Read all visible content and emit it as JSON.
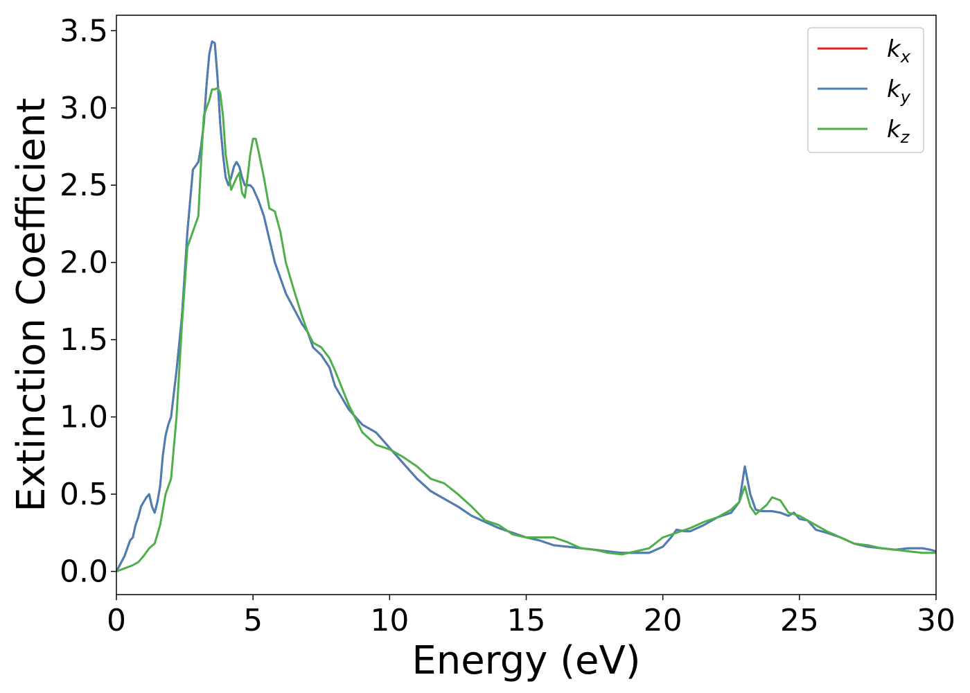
{
  "chart_data": {
    "type": "line",
    "title": "",
    "xlabel": "Energy (eV)",
    "ylabel": "Extinction Coefficient",
    "xlim": [
      0,
      30
    ],
    "ylim": [
      -0.15,
      3.6
    ],
    "xticks": [
      0,
      5,
      10,
      15,
      20,
      25,
      30
    ],
    "xtick_labels": [
      "0",
      "5",
      "10",
      "15",
      "20",
      "25",
      "30"
    ],
    "yticks": [
      0.0,
      0.5,
      1.0,
      1.5,
      2.0,
      2.5,
      3.0,
      3.5
    ],
    "ytick_labels": [
      "0.0",
      "0.5",
      "1.0",
      "1.5",
      "2.0",
      "2.5",
      "3.0",
      "3.5"
    ],
    "grid": false,
    "legend_position": "top-right",
    "series": [
      {
        "name": "k_x",
        "legend_base": "k",
        "legend_sub": "x",
        "color": "#e41a1c",
        "x": [
          0,
          0.3,
          0.5,
          0.6,
          0.7,
          0.8,
          0.9,
          1.0,
          1.1,
          1.2,
          1.3,
          1.4,
          1.5,
          1.6,
          1.7,
          1.8,
          1.9,
          2.0,
          2.2,
          2.4,
          2.6,
          2.8,
          3.0,
          3.1,
          3.2,
          3.3,
          3.4,
          3.5,
          3.6,
          3.7,
          3.8,
          3.9,
          4.0,
          4.1,
          4.2,
          4.3,
          4.4,
          4.5,
          4.6,
          4.7,
          4.8,
          4.9,
          5.0,
          5.2,
          5.4,
          5.6,
          5.8,
          6.0,
          6.2,
          6.5,
          6.8,
          7.0,
          7.2,
          7.5,
          7.8,
          8.0,
          8.5,
          9.0,
          9.5,
          10.0,
          10.5,
          11.0,
          11.5,
          12.0,
          12.5,
          13.0,
          13.5,
          14.0,
          14.5,
          15.0,
          15.5,
          16.0,
          16.5,
          17.0,
          17.5,
          18.0,
          18.5,
          19.0,
          19.5,
          20.0,
          20.3,
          20.5,
          20.8,
          21.0,
          21.5,
          22.0,
          22.5,
          22.8,
          23.0,
          23.2,
          23.4,
          23.6,
          24.0,
          24.3,
          24.6,
          24.8,
          25.0,
          25.3,
          25.6,
          26.0,
          26.5,
          27.0,
          27.5,
          28.0,
          28.5,
          29.0,
          29.5,
          29.8,
          30.0
        ],
        "y": [
          0,
          0.1,
          0.2,
          0.22,
          0.3,
          0.35,
          0.42,
          0.45,
          0.48,
          0.5,
          0.42,
          0.38,
          0.45,
          0.55,
          0.75,
          0.88,
          0.95,
          1.0,
          1.3,
          1.65,
          2.2,
          2.6,
          2.65,
          2.75,
          2.9,
          3.15,
          3.35,
          3.43,
          3.42,
          3.2,
          2.9,
          2.7,
          2.55,
          2.5,
          2.55,
          2.62,
          2.65,
          2.62,
          2.55,
          2.5,
          2.5,
          2.5,
          2.48,
          2.4,
          2.3,
          2.15,
          2.0,
          1.9,
          1.8,
          1.7,
          1.6,
          1.55,
          1.45,
          1.4,
          1.32,
          1.2,
          1.05,
          0.95,
          0.9,
          0.8,
          0.7,
          0.6,
          0.52,
          0.47,
          0.42,
          0.36,
          0.32,
          0.28,
          0.25,
          0.22,
          0.2,
          0.17,
          0.16,
          0.15,
          0.14,
          0.13,
          0.12,
          0.12,
          0.12,
          0.16,
          0.22,
          0.27,
          0.26,
          0.26,
          0.3,
          0.35,
          0.38,
          0.45,
          0.68,
          0.5,
          0.4,
          0.39,
          0.39,
          0.38,
          0.36,
          0.38,
          0.34,
          0.33,
          0.27,
          0.25,
          0.22,
          0.18,
          0.16,
          0.15,
          0.14,
          0.15,
          0.15,
          0.14,
          0.13
        ]
      },
      {
        "name": "k_y",
        "legend_base": "k",
        "legend_sub": "y",
        "color": "#4a7fb5",
        "x": [
          0,
          0.3,
          0.5,
          0.6,
          0.7,
          0.8,
          0.9,
          1.0,
          1.1,
          1.2,
          1.3,
          1.4,
          1.5,
          1.6,
          1.7,
          1.8,
          1.9,
          2.0,
          2.2,
          2.4,
          2.6,
          2.8,
          3.0,
          3.1,
          3.2,
          3.3,
          3.4,
          3.5,
          3.6,
          3.7,
          3.8,
          3.9,
          4.0,
          4.1,
          4.2,
          4.3,
          4.4,
          4.5,
          4.6,
          4.7,
          4.8,
          4.9,
          5.0,
          5.2,
          5.4,
          5.6,
          5.8,
          6.0,
          6.2,
          6.5,
          6.8,
          7.0,
          7.2,
          7.5,
          7.8,
          8.0,
          8.5,
          9.0,
          9.5,
          10.0,
          10.5,
          11.0,
          11.5,
          12.0,
          12.5,
          13.0,
          13.5,
          14.0,
          14.5,
          15.0,
          15.5,
          16.0,
          16.5,
          17.0,
          17.5,
          18.0,
          18.5,
          19.0,
          19.5,
          20.0,
          20.3,
          20.5,
          20.8,
          21.0,
          21.5,
          22.0,
          22.5,
          22.8,
          23.0,
          23.2,
          23.4,
          23.6,
          24.0,
          24.3,
          24.6,
          24.8,
          25.0,
          25.3,
          25.6,
          26.0,
          26.5,
          27.0,
          27.5,
          28.0,
          28.5,
          29.0,
          29.5,
          29.8,
          30.0
        ],
        "y": [
          0,
          0.1,
          0.2,
          0.22,
          0.3,
          0.35,
          0.42,
          0.45,
          0.48,
          0.5,
          0.42,
          0.38,
          0.45,
          0.55,
          0.75,
          0.88,
          0.95,
          1.0,
          1.3,
          1.65,
          2.2,
          2.6,
          2.65,
          2.75,
          2.9,
          3.15,
          3.35,
          3.43,
          3.42,
          3.2,
          2.9,
          2.7,
          2.55,
          2.5,
          2.55,
          2.62,
          2.65,
          2.62,
          2.55,
          2.5,
          2.5,
          2.5,
          2.48,
          2.4,
          2.3,
          2.15,
          2.0,
          1.9,
          1.8,
          1.7,
          1.6,
          1.55,
          1.45,
          1.4,
          1.32,
          1.2,
          1.05,
          0.95,
          0.9,
          0.8,
          0.7,
          0.6,
          0.52,
          0.47,
          0.42,
          0.36,
          0.32,
          0.28,
          0.25,
          0.22,
          0.2,
          0.17,
          0.16,
          0.15,
          0.14,
          0.13,
          0.12,
          0.12,
          0.12,
          0.16,
          0.22,
          0.27,
          0.26,
          0.26,
          0.3,
          0.35,
          0.38,
          0.45,
          0.68,
          0.5,
          0.4,
          0.39,
          0.39,
          0.38,
          0.36,
          0.38,
          0.34,
          0.33,
          0.27,
          0.25,
          0.22,
          0.18,
          0.16,
          0.15,
          0.14,
          0.15,
          0.15,
          0.14,
          0.13
        ]
      },
      {
        "name": "k_z",
        "legend_base": "k",
        "legend_sub": "z",
        "color": "#4daf4a",
        "x": [
          0,
          0.3,
          0.6,
          0.8,
          1.0,
          1.2,
          1.4,
          1.6,
          1.8,
          2.0,
          2.2,
          2.4,
          2.6,
          2.8,
          3.0,
          3.1,
          3.2,
          3.3,
          3.4,
          3.5,
          3.6,
          3.7,
          3.8,
          3.9,
          4.0,
          4.2,
          4.4,
          4.5,
          4.6,
          4.7,
          4.8,
          4.9,
          5.0,
          5.1,
          5.2,
          5.4,
          5.6,
          5.8,
          6.0,
          6.2,
          6.5,
          6.8,
          7.0,
          7.2,
          7.5,
          7.8,
          8.0,
          8.5,
          9.0,
          9.5,
          10.0,
          10.5,
          11.0,
          11.5,
          12.0,
          12.5,
          13.0,
          13.5,
          14.0,
          14.5,
          15.0,
          15.5,
          16.0,
          16.5,
          17.0,
          17.5,
          18.0,
          18.5,
          19.0,
          19.5,
          20.0,
          20.5,
          21.0,
          21.5,
          22.0,
          22.5,
          22.8,
          23.0,
          23.2,
          23.4,
          23.6,
          23.8,
          24.0,
          24.3,
          24.6,
          25.0,
          25.3,
          25.6,
          26.0,
          26.5,
          27.0,
          27.5,
          28.0,
          28.5,
          29.0,
          29.5,
          30.0
        ],
        "y": [
          0,
          0.02,
          0.04,
          0.06,
          0.1,
          0.15,
          0.18,
          0.3,
          0.5,
          0.6,
          1.0,
          1.6,
          2.1,
          2.2,
          2.3,
          2.65,
          2.95,
          3.0,
          3.05,
          3.12,
          3.12,
          3.13,
          3.1,
          2.95,
          2.7,
          2.47,
          2.55,
          2.58,
          2.45,
          2.42,
          2.55,
          2.7,
          2.8,
          2.8,
          2.72,
          2.55,
          2.35,
          2.33,
          2.2,
          2.0,
          1.82,
          1.65,
          1.55,
          1.48,
          1.45,
          1.38,
          1.3,
          1.08,
          0.9,
          0.82,
          0.79,
          0.74,
          0.68,
          0.6,
          0.57,
          0.5,
          0.42,
          0.33,
          0.3,
          0.24,
          0.22,
          0.22,
          0.22,
          0.19,
          0.15,
          0.14,
          0.12,
          0.11,
          0.13,
          0.15,
          0.22,
          0.25,
          0.28,
          0.32,
          0.35,
          0.4,
          0.45,
          0.55,
          0.42,
          0.37,
          0.4,
          0.43,
          0.48,
          0.46,
          0.38,
          0.36,
          0.33,
          0.3,
          0.26,
          0.22,
          0.18,
          0.17,
          0.15,
          0.14,
          0.13,
          0.12,
          0.12
        ]
      }
    ]
  }
}
